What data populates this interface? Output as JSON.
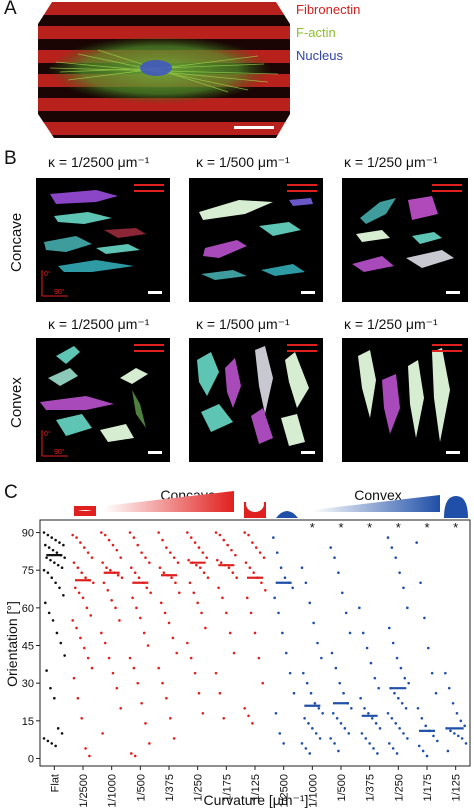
{
  "panelA": {
    "letter": "A",
    "legend": [
      {
        "label": "Fibronectin",
        "color": "#d2201c"
      },
      {
        "label": "F-actin",
        "color": "#8dbf2e"
      },
      {
        "label": "Nucleus",
        "color": "#3344a8"
      }
    ]
  },
  "panelB": {
    "letter": "B",
    "rows": [
      {
        "label": "Concave",
        "kappas": [
          "κ = 1/2500 μm⁻¹",
          "κ = 1/500 μm⁻¹",
          "κ = 1/250 μm⁻¹"
        ]
      },
      {
        "label": "Convex",
        "kappas": [
          "κ = 1/2500 μm⁻¹",
          "κ = 1/500 μm⁻¹",
          "κ = 1/250 μm⁻¹"
        ]
      }
    ],
    "axis_0": "0°",
    "axis_90": "90°"
  },
  "panelC": {
    "letter": "C",
    "concave_label": "Concave",
    "convex_label": "Convex",
    "concave_color": "#e0201e",
    "convex_color": "#1f4fa8",
    "flat_color": "#111111"
  },
  "chart_data": {
    "type": "scatter",
    "ylabel": "Orientation [°]",
    "xlabel": "Curvature [μm⁻¹]",
    "ylim": [
      -3,
      95
    ],
    "yticks": [
      0,
      15,
      30,
      45,
      60,
      75,
      90
    ],
    "categories": [
      "Flat",
      "1/2500",
      "1/1000",
      "1/500",
      "1/375",
      "1/250",
      "1/175",
      "1/125",
      "1/2500",
      "1/1000",
      "1/500",
      "1/375",
      "1/250",
      "1/175",
      "1/125"
    ],
    "groups": [
      "flat",
      "concave",
      "concave",
      "concave",
      "concave",
      "concave",
      "concave",
      "concave",
      "convex",
      "convex",
      "convex",
      "convex",
      "convex",
      "convex",
      "convex"
    ],
    "medians": [
      81,
      71,
      74,
      70,
      73,
      78,
      77,
      72,
      70,
      21,
      22,
      17,
      28,
      11,
      12
    ],
    "significance": [
      "",
      "",
      "",
      "",
      "",
      "",
      "",
      "",
      "",
      "*",
      "*",
      "*",
      "*",
      "*",
      "*"
    ],
    "points": [
      [
        90,
        89,
        88,
        87,
        86,
        85,
        85,
        84,
        83,
        82,
        81,
        80,
        80,
        79,
        78,
        77,
        76,
        75,
        74,
        72,
        70,
        68,
        65,
        62,
        58,
        55,
        50,
        46,
        41,
        35,
        28,
        24,
        12,
        10,
        8,
        7,
        6,
        5
      ],
      [
        89,
        88,
        86,
        84,
        82,
        80,
        78,
        76,
        74,
        72,
        71,
        70,
        68,
        66,
        64,
        60,
        57,
        55,
        52,
        48,
        44,
        40,
        36,
        32,
        24,
        16,
        4,
        1
      ],
      [
        90,
        89,
        87,
        85,
        83,
        80,
        78,
        76,
        75,
        74,
        73,
        72,
        70,
        67,
        63,
        60,
        55,
        50,
        46,
        40,
        34,
        28,
        20,
        10
      ],
      [
        90,
        88,
        85,
        82,
        80,
        78,
        76,
        74,
        72,
        70,
        68,
        66,
        64,
        60,
        56,
        50,
        45,
        40,
        36,
        30,
        22,
        14,
        6,
        2,
        1
      ],
      [
        90,
        87,
        84,
        82,
        80,
        78,
        76,
        74,
        73,
        72,
        70,
        66,
        62,
        58,
        54,
        48,
        42,
        36,
        30,
        24,
        16,
        8
      ],
      [
        90,
        88,
        86,
        84,
        82,
        80,
        79,
        78,
        77,
        76,
        74,
        72,
        70,
        66,
        62,
        58,
        52,
        46,
        40,
        34,
        26,
        18
      ],
      [
        90,
        89,
        87,
        85,
        83,
        81,
        79,
        78,
        77,
        76,
        74,
        72,
        68,
        64,
        58,
        50,
        42,
        34,
        26,
        16
      ],
      [
        90,
        89,
        86,
        84,
        82,
        80,
        78,
        76,
        74,
        72,
        70,
        67,
        64,
        58,
        50,
        40,
        30,
        20,
        17,
        14
      ],
      [
        88,
        82,
        76,
        72,
        70,
        68,
        64,
        58,
        50,
        42,
        34,
        26,
        18,
        10,
        6
      ],
      [
        76,
        70,
        62,
        54,
        46,
        40,
        34,
        30,
        26,
        22,
        20,
        18,
        16,
        14,
        12,
        10,
        8,
        6,
        4,
        2
      ],
      [
        84,
        80,
        74,
        66,
        58,
        50,
        42,
        36,
        30,
        26,
        22,
        20,
        18,
        16,
        14,
        12,
        10,
        8,
        6,
        3
      ],
      [
        60,
        50,
        44,
        38,
        32,
        28,
        24,
        20,
        18,
        16,
        14,
        12,
        10,
        8,
        6,
        4,
        2
      ],
      [
        88,
        84,
        80,
        74,
        68,
        60,
        52,
        46,
        40,
        36,
        32,
        30,
        28,
        26,
        24,
        22,
        20,
        18,
        16,
        14,
        12,
        10,
        8,
        6,
        4,
        2
      ],
      [
        86,
        70,
        56,
        44,
        34,
        26,
        20,
        16,
        13,
        11,
        9,
        7,
        5,
        3,
        1
      ],
      [
        34,
        28,
        22,
        18,
        15,
        13,
        12,
        11,
        10,
        9,
        8,
        6,
        3
      ]
    ]
  }
}
